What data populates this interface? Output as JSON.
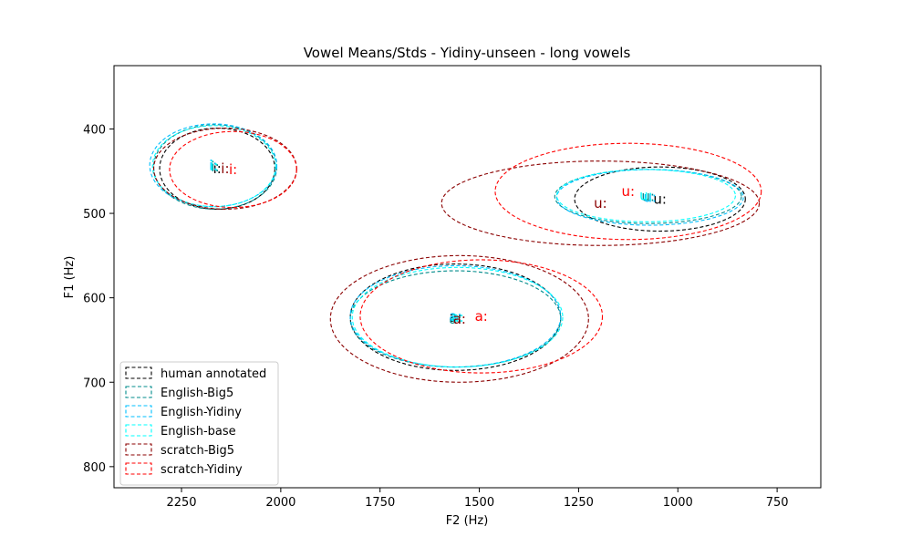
{
  "chart_data": {
    "type": "scatter",
    "title": "Vowel Means/Stds - Yidiny-unseen - long vowels",
    "xlabel": "F2 (Hz)",
    "ylabel": "F1 (Hz)",
    "xlim": [
      2420,
      640
    ],
    "ylim": [
      825,
      325
    ],
    "x_ticks": [
      2250,
      2000,
      1750,
      1500,
      1250,
      1000,
      750
    ],
    "x_tick_labels": [
      "2250",
      "2000",
      "1750",
      "1500",
      "1250",
      "1000",
      "750"
    ],
    "y_ticks": [
      400,
      500,
      600,
      700,
      800
    ],
    "y_tick_labels": [
      "400",
      "500",
      "600",
      "700",
      "800"
    ],
    "legend_position": "lower-left",
    "series": [
      {
        "name": "human annotated",
        "color": "#000000",
        "points": [
          {
            "label": "i:",
            "f2": 2160,
            "f1": 447,
            "sd_f2": 145,
            "sd_f1": 48
          },
          {
            "label": "a:",
            "f2": 1560,
            "f1": 623,
            "sd_f2": 265,
            "sd_f1": 63
          },
          {
            "label": "u:",
            "f2": 1045,
            "f1": 483,
            "sd_f2": 215,
            "sd_f1": 38
          }
        ]
      },
      {
        "name": "English-Big5",
        "color": "#008b8b",
        "points": [
          {
            "label": "i:",
            "f2": 2165,
            "f1": 445,
            "sd_f2": 155,
            "sd_f1": 50
          },
          {
            "label": "a:",
            "f2": 1560,
            "f1": 625,
            "sd_f2": 265,
            "sd_f1": 57
          },
          {
            "label": "u:",
            "f2": 1075,
            "f1": 480,
            "sd_f2": 235,
            "sd_f1": 32
          }
        ]
      },
      {
        "name": "English-Yidiny",
        "color": "#00bfff",
        "points": [
          {
            "label": "i:",
            "f2": 2170,
            "f1": 443,
            "sd_f2": 160,
            "sd_f1": 49
          },
          {
            "label": "a:",
            "f2": 1560,
            "f1": 622,
            "sd_f2": 265,
            "sd_f1": 60
          },
          {
            "label": "u:",
            "f2": 1070,
            "f1": 481,
            "sd_f2": 235,
            "sd_f1": 33
          }
        ]
      },
      {
        "name": "English-base",
        "color": "#00ffff",
        "points": [
          {
            "label": "i:",
            "f2": 2168,
            "f1": 444,
            "sd_f2": 155,
            "sd_f1": 48
          },
          {
            "label": "a:",
            "f2": 1555,
            "f1": 623,
            "sd_f2": 265,
            "sd_f1": 59
          },
          {
            "label": "u:",
            "f2": 1080,
            "f1": 479,
            "sd_f2": 225,
            "sd_f1": 31
          }
        ]
      },
      {
        "name": "scratch-Big5",
        "color": "#8b0000",
        "points": [
          {
            "label": "i:",
            "f2": 2140,
            "f1": 447,
            "sd_f2": 180,
            "sd_f1": 48
          },
          {
            "label": "a:",
            "f2": 1550,
            "f1": 625,
            "sd_f2": 325,
            "sd_f1": 75
          },
          {
            "label": "u:",
            "f2": 1195,
            "f1": 488,
            "sd_f2": 400,
            "sd_f1": 50
          }
        ]
      },
      {
        "name": "scratch-Yidiny",
        "color": "#ff0000",
        "points": [
          {
            "label": "i:",
            "f2": 2120,
            "f1": 448,
            "sd_f2": 160,
            "sd_f1": 45
          },
          {
            "label": "a:",
            "f2": 1495,
            "f1": 622,
            "sd_f2": 305,
            "sd_f1": 67
          },
          {
            "label": "u:",
            "f2": 1125,
            "f1": 474,
            "sd_f2": 335,
            "sd_f1": 57
          }
        ]
      }
    ]
  }
}
